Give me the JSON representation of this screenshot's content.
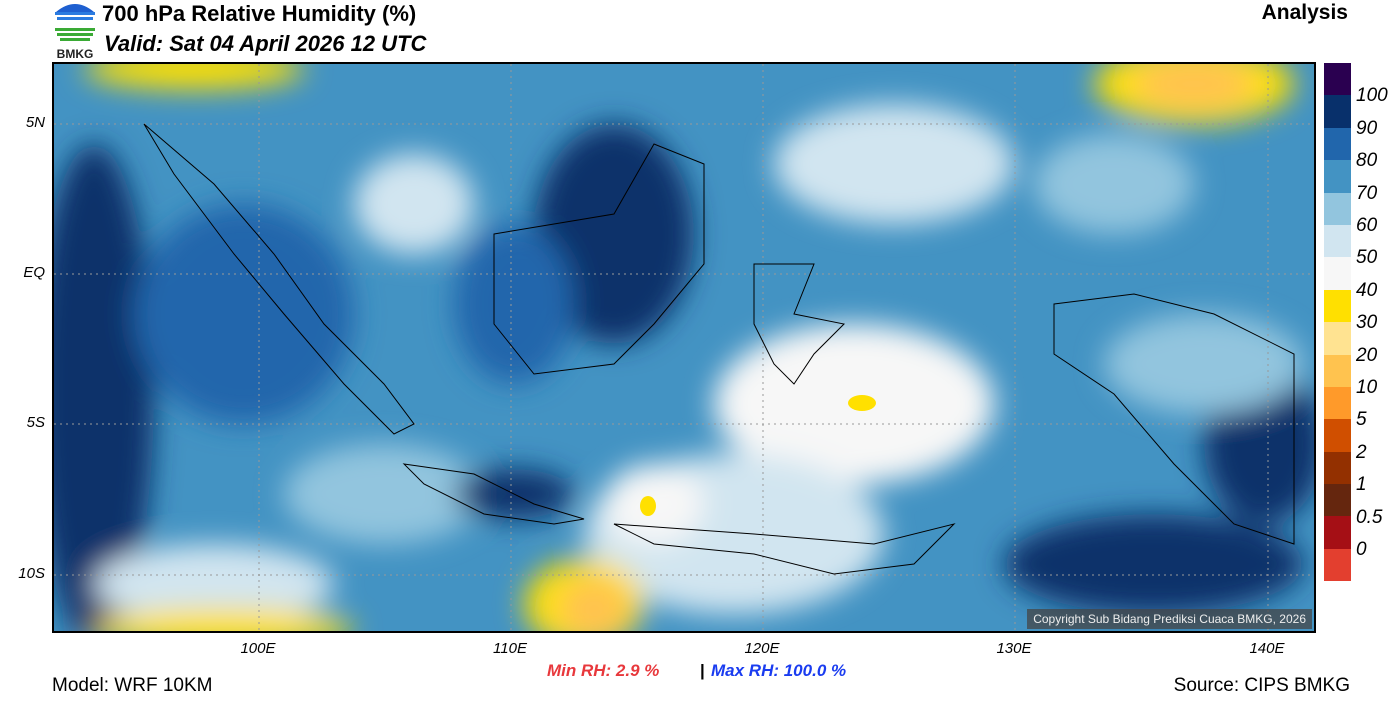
{
  "header": {
    "title": "700 hPa Relative Humidity (%)",
    "valid": "Valid: Sat 04 April 2026 12 UTC",
    "run_type": "Analysis",
    "logo_text": "BMKG"
  },
  "axes": {
    "lat_labels": [
      "5N",
      "EQ",
      "5S",
      "10S"
    ],
    "lon_labels": [
      "100E",
      "110E",
      "120E",
      "130E",
      "140E"
    ]
  },
  "colorbar": {
    "colors": [
      "#2a0050",
      "#08306b",
      "#2166ac",
      "#4393c3",
      "#92c5de",
      "#d1e5f0",
      "#f7f7f7",
      "#ffe000",
      "#ffe391",
      "#ffc34f",
      "#ff9a2a",
      "#d04f00",
      "#933000",
      "#65260e",
      "#a50f15",
      "#e33f2f"
    ],
    "labels": [
      "100",
      "90",
      "80",
      "70",
      "60",
      "50",
      "40",
      "30",
      "20",
      "10",
      "5",
      "2",
      "1",
      "0.5",
      "0"
    ]
  },
  "stats": {
    "min_label": "Min RH:   2.9 %",
    "separator": "|",
    "max_label": "Max RH: 100.0 %"
  },
  "footer": {
    "model": "Model: WRF 10KM",
    "source": "Source: CIPS BMKG",
    "copyright": "Copyright Sub Bidang Prediksi Cuaca BMKG, 2026"
  }
}
